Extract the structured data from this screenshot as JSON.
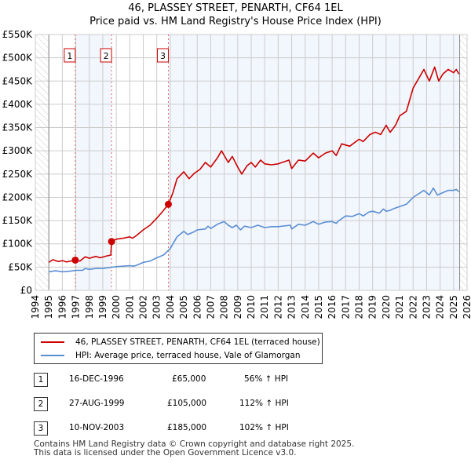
{
  "chart_data": {
    "type": "line",
    "title": "46, PLASSEY STREET, PENARTH, CF64 1EL",
    "subtitle": "Price paid vs. HM Land Registry's House Price Index (HPI)",
    "xlim": [
      1994,
      2026
    ],
    "ylim": [
      0,
      550000
    ],
    "x_ticks": [
      "1994",
      "1995",
      "1996",
      "1997",
      "1998",
      "1999",
      "2000",
      "2001",
      "2002",
      "2003",
      "2004",
      "2005",
      "2006",
      "2007",
      "2008",
      "2009",
      "2010",
      "2011",
      "2012",
      "2013",
      "2014",
      "2015",
      "2016",
      "2017",
      "2018",
      "2019",
      "2020",
      "2021",
      "2022",
      "2023",
      "2024",
      "2025",
      "2026"
    ],
    "y_ticks": [
      "£0",
      "£50K",
      "£100K",
      "£150K",
      "£200K",
      "£250K",
      "£300K",
      "£350K",
      "£400K",
      "£450K",
      "£500K",
      "£550K"
    ],
    "grid": true,
    "series": [
      {
        "name": "46, PLASSEY STREET, PENARTH, CF64 1EL (terraced house)",
        "color": "#cc0000",
        "x": [
          1995,
          1995.3,
          1995.7,
          1996,
          1996.3,
          1996.96,
          1997.3,
          1997.7,
          1998,
          1998.5,
          1998.8,
          1999.3,
          1999.6,
          1999.65,
          2000,
          2000.5,
          2001,
          2001.2,
          2001.5,
          2002,
          2002.5,
          2003,
          2003.5,
          2003.86,
          2004.2,
          2004.5,
          2005,
          2005.4,
          2005.8,
          2006.2,
          2006.6,
          2007,
          2007.5,
          2007.8,
          2008.3,
          2008.6,
          2009,
          2009.3,
          2009.7,
          2010,
          2010.3,
          2010.7,
          2011,
          2011.5,
          2012,
          2012.8,
          2013,
          2013.5,
          2014,
          2014.6,
          2015,
          2015.5,
          2016,
          2016.3,
          2016.7,
          2017.3,
          2018,
          2018.3,
          2018.8,
          2019.2,
          2019.6,
          2020,
          2020.3,
          2020.7,
          2021,
          2021.5,
          2022,
          2022.8,
          2023.2,
          2023.6,
          2023.9,
          2024.2,
          2024.6,
          2025,
          2025.2,
          2025.4
        ],
        "y": [
          60000,
          66000,
          62000,
          64000,
          61000,
          65000,
          63000,
          72000,
          69000,
          73000,
          70000,
          74000,
          76000,
          105000,
          110000,
          112000,
          115000,
          112000,
          118000,
          130000,
          140000,
          155000,
          172000,
          185000,
          210000,
          240000,
          255000,
          240000,
          252000,
          260000,
          275000,
          265000,
          285000,
          300000,
          275000,
          288000,
          265000,
          250000,
          268000,
          275000,
          265000,
          280000,
          272000,
          270000,
          272000,
          280000,
          262000,
          280000,
          278000,
          295000,
          285000,
          295000,
          300000,
          290000,
          315000,
          310000,
          325000,
          320000,
          335000,
          340000,
          335000,
          355000,
          340000,
          355000,
          375000,
          385000,
          435000,
          475000,
          450000,
          480000,
          450000,
          465000,
          475000,
          468000,
          475000,
          465000
        ]
      },
      {
        "name": "HPI: Average price, terraced house, Vale of Glamorgan",
        "color": "#5b8fd4",
        "x": [
          1995,
          1995.5,
          1996,
          1996.5,
          1997,
          1997.5,
          1997.7,
          1998,
          1998.5,
          1999,
          1999.5,
          2000,
          2000.5,
          2001,
          2001.3,
          2001.6,
          2002,
          2002.5,
          2003,
          2003.5,
          2004,
          2004.5,
          2005,
          2005.3,
          2005.7,
          2006,
          2006.6,
          2006.8,
          2007,
          2007.5,
          2008,
          2008.3,
          2008.6,
          2008.9,
          2009.2,
          2009.5,
          2010,
          2010.5,
          2011,
          2011.5,
          2012,
          2012.9,
          2013,
          2013.5,
          2014,
          2014.6,
          2015,
          2015.5,
          2016,
          2016.3,
          2016.5,
          2017,
          2017.5,
          2018,
          2018.3,
          2018.7,
          2019,
          2019.5,
          2019.8,
          2020,
          2020.3,
          2020.5,
          2021,
          2021.5,
          2022,
          2022.8,
          2023.2,
          2023.5,
          2023.8,
          2024.2,
          2024.6,
          2025,
          2025.2,
          2025.4
        ],
        "y": [
          40000,
          42000,
          40000,
          41000,
          43000,
          43000,
          47000,
          45000,
          47000,
          47000,
          49000,
          51000,
          52000,
          53000,
          52000,
          55000,
          60000,
          63000,
          70000,
          76000,
          90000,
          115000,
          127000,
          120000,
          125000,
          130000,
          132000,
          138000,
          133000,
          142000,
          148000,
          140000,
          135000,
          140000,
          130000,
          138000,
          135000,
          140000,
          135000,
          137000,
          137000,
          140000,
          132000,
          142000,
          140000,
          148000,
          142000,
          147000,
          148000,
          144000,
          150000,
          160000,
          159000,
          165000,
          160000,
          168000,
          170000,
          166000,
          175000,
          170000,
          172000,
          175000,
          180000,
          185000,
          200000,
          215000,
          205000,
          220000,
          205000,
          210000,
          215000,
          215000,
          217000,
          212000
        ]
      }
    ],
    "sales": [
      {
        "label": "1",
        "x": 1996.96,
        "y": 65000,
        "date": "16-DEC-1996",
        "price": "£65,000",
        "hpi": "56% ↑ HPI"
      },
      {
        "label": "2",
        "x": 1999.65,
        "y": 105000,
        "date": "27-AUG-1999",
        "price": "£105,000",
        "hpi": "112% ↑ HPI"
      },
      {
        "label": "3",
        "x": 2003.86,
        "y": 185000,
        "date": "10-NOV-2003",
        "price": "£185,000",
        "hpi": "102% ↑ HPI"
      }
    ],
    "data_end": 2025.45
  },
  "footer": {
    "line1": "Contains HM Land Registry data © Crown copyright and database right 2025.",
    "line2": "This data is licensed under the Open Government Licence v3.0."
  }
}
